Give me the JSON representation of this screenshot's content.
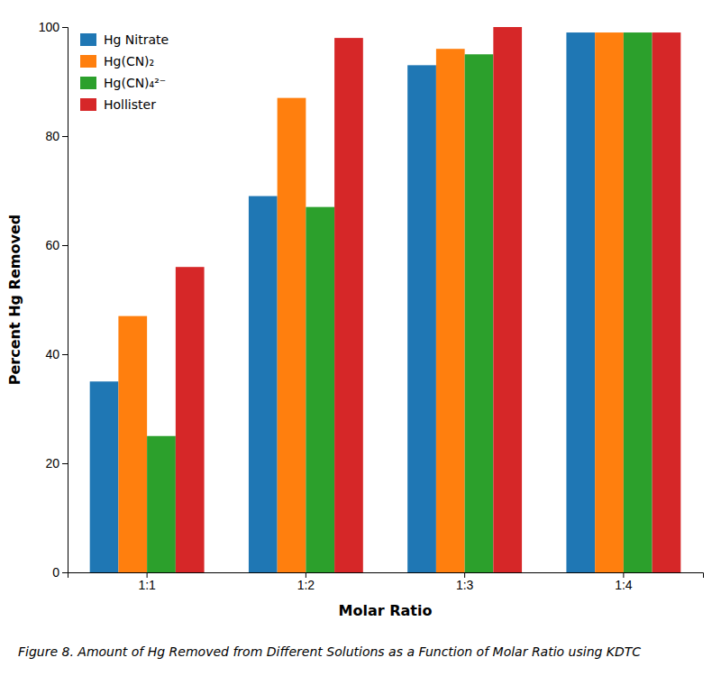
{
  "chart_data": {
    "type": "bar",
    "title": "Figure 8. Amount of Hg Removed from Different Solutions as a Function of Molar Ratio using KDTC",
    "xlabel": "Molar Ratio",
    "ylabel": "Percent Hg Removed",
    "categories": [
      "1:1",
      "1:2",
      "1:3",
      "1:4"
    ],
    "series": [
      {
        "name": "Hg Nitrate",
        "values": [
          35,
          69,
          93,
          99
        ]
      },
      {
        "name": "Hg(CN)₂",
        "values": [
          47,
          87,
          96,
          99
        ]
      },
      {
        "name": "Hg(CN)₄²⁻",
        "values": [
          25,
          67,
          95,
          99
        ]
      },
      {
        "name": "Hollister",
        "values": [
          56,
          98,
          100,
          99
        ]
      }
    ],
    "ylim": [
      0,
      100
    ],
    "yticks": [
      0,
      20,
      40,
      60,
      80,
      100
    ],
    "grid": false,
    "legend": "upper left"
  }
}
